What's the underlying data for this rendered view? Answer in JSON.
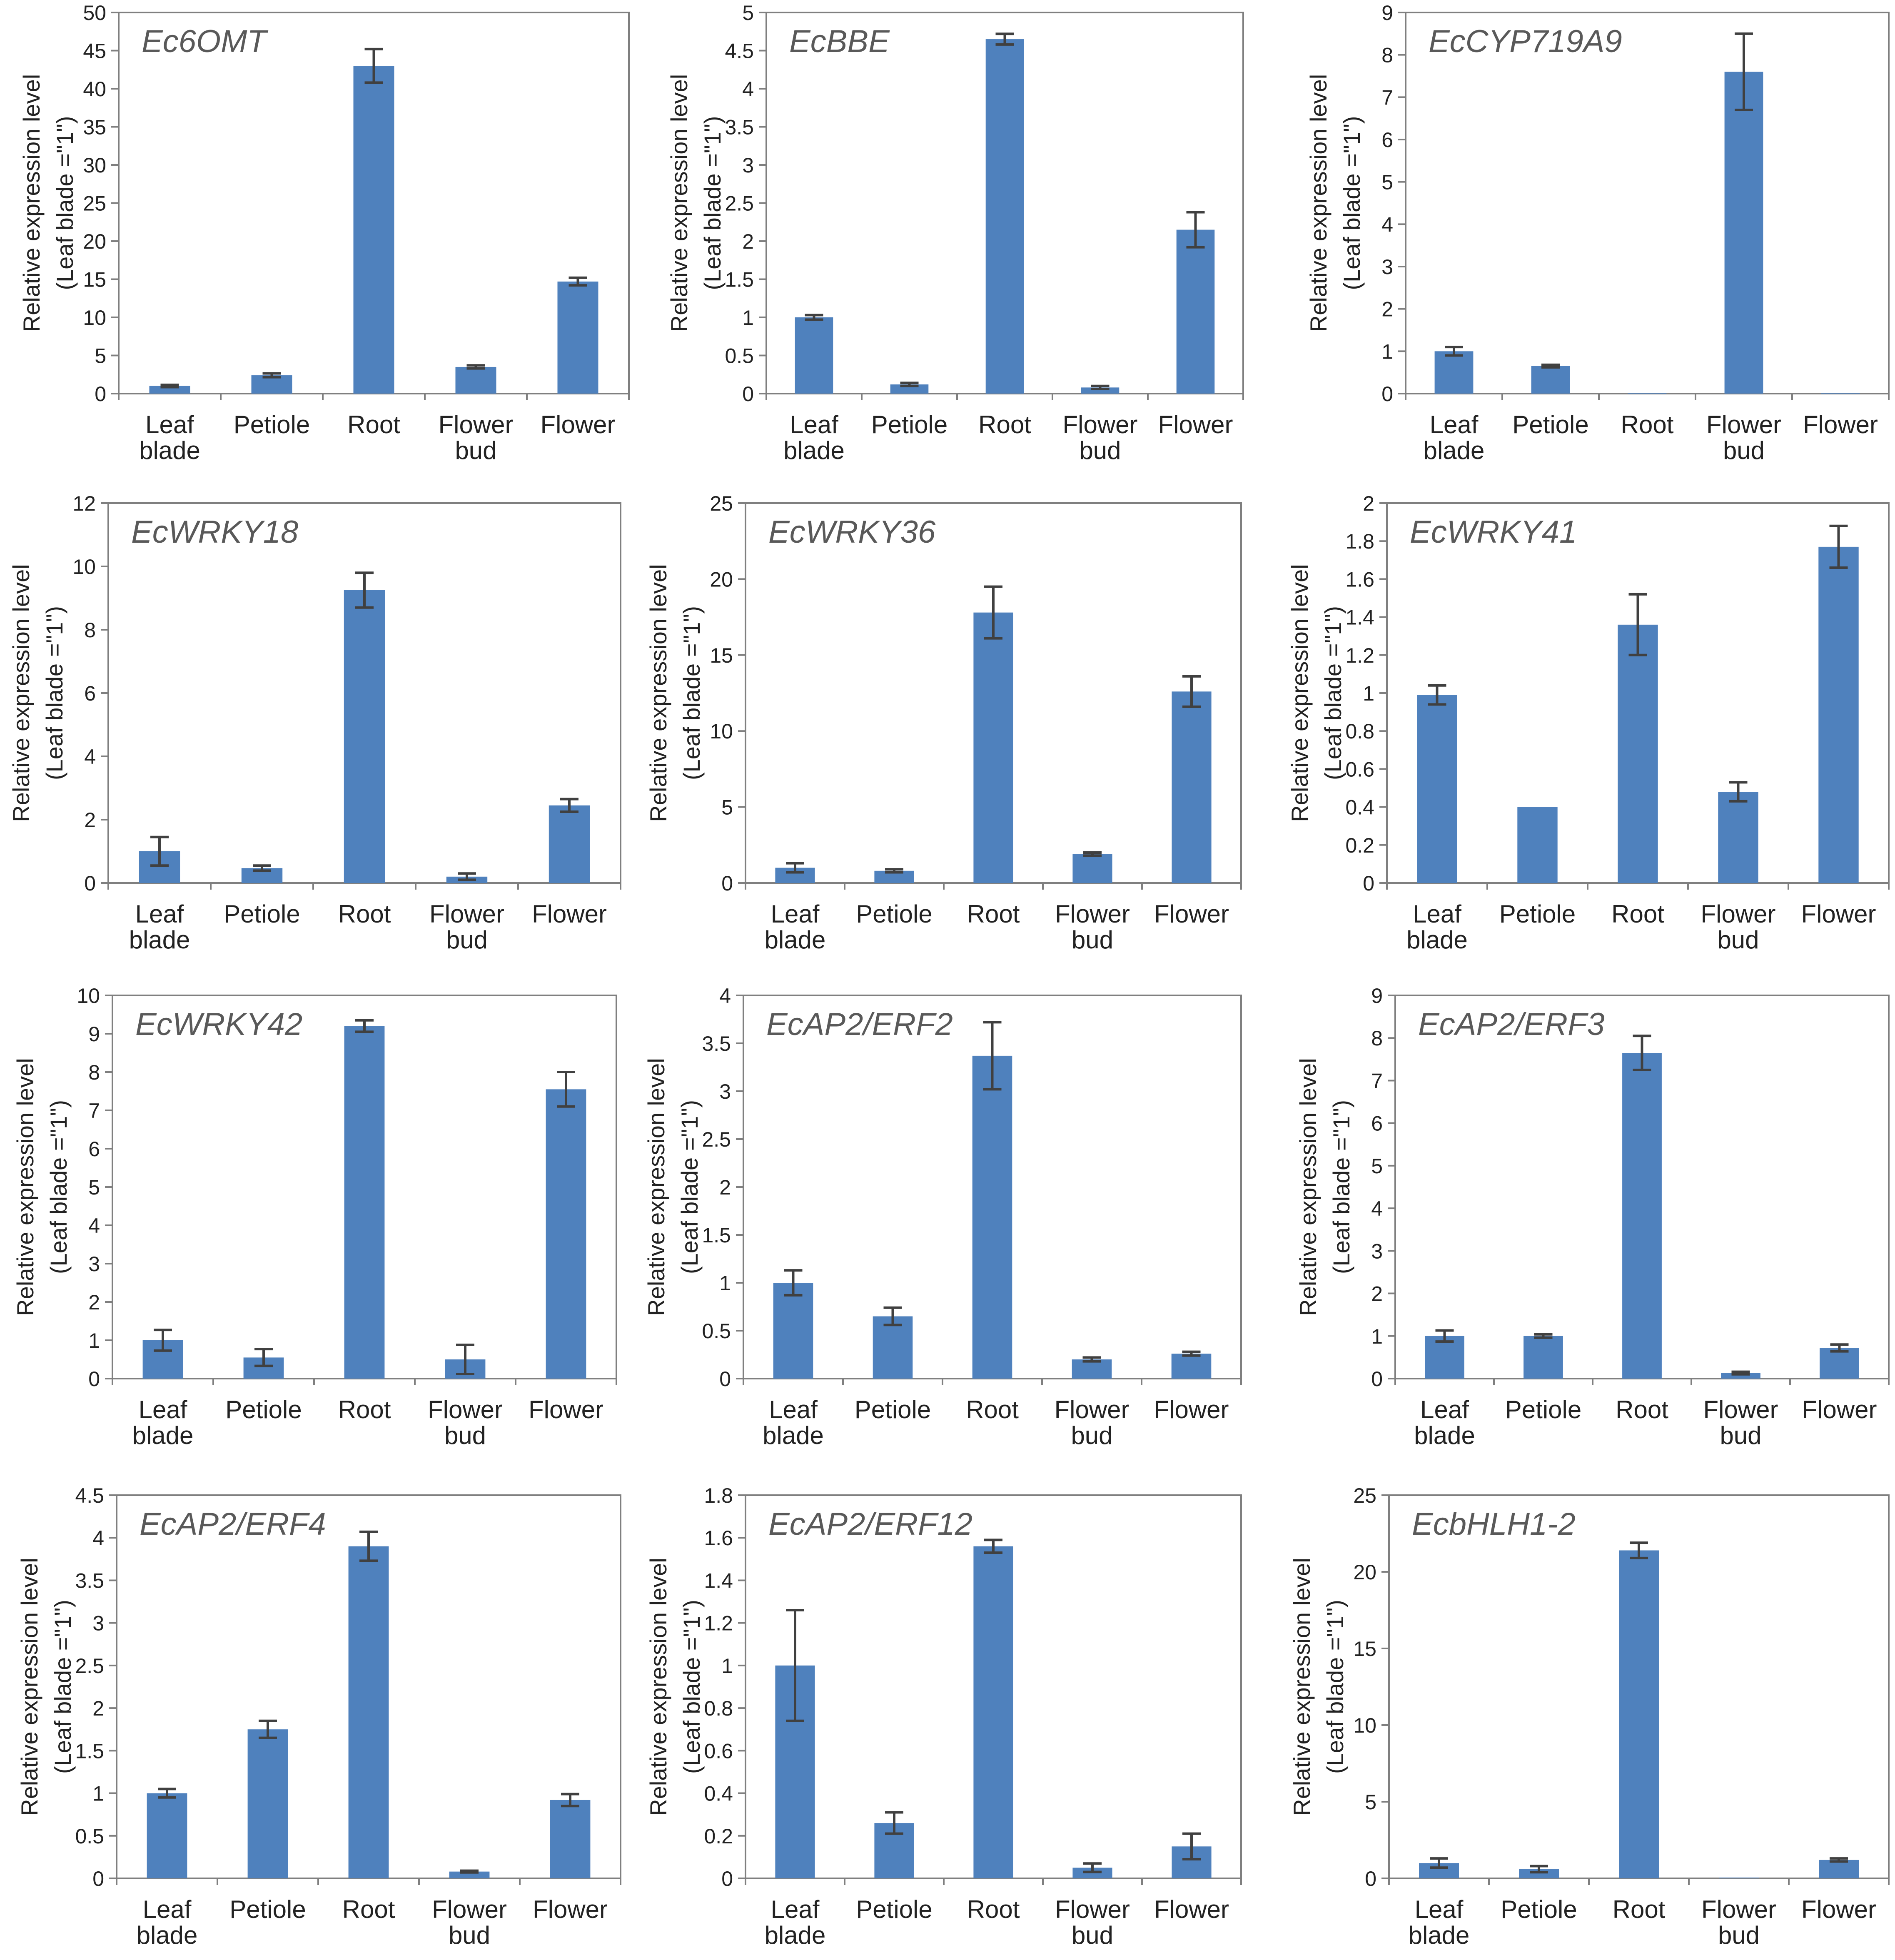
{
  "figure": {
    "categories": [
      [
        "Leaf",
        "blade"
      ],
      [
        "Petiole"
      ],
      [
        "Root"
      ],
      [
        "Flower",
        "bud"
      ],
      [
        "Flower"
      ]
    ],
    "ylabel_line1": "Relative expression level",
    "ylabel_line2": "(Leaf blade =\"1\")"
  },
  "chart_data": [
    {
      "type": "bar",
      "title": "Ec6OMT",
      "categories": [
        "Leaf blade",
        "Petiole",
        "Root",
        "Flower bud",
        "Flower"
      ],
      "values": [
        1.0,
        2.4,
        43.0,
        3.5,
        14.7
      ],
      "errors": [
        0.15,
        0.25,
        2.2,
        0.2,
        0.5
      ],
      "ylim": [
        0,
        50
      ],
      "ticks": [
        "0",
        "5",
        "10",
        "15",
        "20",
        "25",
        "30",
        "35",
        "40",
        "45",
        "50"
      ],
      "ylabel": "Relative expression level (Leaf blade =\"1\")"
    },
    {
      "type": "bar",
      "title": "EcBBE",
      "categories": [
        "Leaf blade",
        "Petiole",
        "Root",
        "Flower bud",
        "Flower"
      ],
      "values": [
        1.0,
        0.12,
        4.65,
        0.08,
        2.15
      ],
      "errors": [
        0.03,
        0.02,
        0.07,
        0.02,
        0.23
      ],
      "ylim": [
        0,
        5
      ],
      "ticks": [
        "0",
        "0.5",
        "1",
        "1.5",
        "2",
        "2.5",
        "3",
        "3.5",
        "4",
        "4.5",
        "5"
      ],
      "ylabel": "Relative expression level (Leaf blade =\"1\")"
    },
    {
      "type": "bar",
      "title": "EcCYP719A9",
      "categories": [
        "Leaf blade",
        "Petiole",
        "Root",
        "Flower bud",
        "Flower"
      ],
      "values": [
        1.0,
        0.65,
        0.01,
        7.6,
        0.01
      ],
      "errors": [
        0.1,
        0.03,
        0.0,
        0.9,
        0.0
      ],
      "ylim": [
        0,
        9
      ],
      "ticks": [
        "0",
        "1",
        "2",
        "3",
        "4",
        "5",
        "6",
        "7",
        "8",
        "9"
      ],
      "ylabel": "Relative expression level (Leaf blade =\"1\")"
    },
    {
      "type": "bar",
      "title": "EcWRKY18",
      "categories": [
        "Leaf blade",
        "Petiole",
        "Root",
        "Flower bud",
        "Flower"
      ],
      "values": [
        1.0,
        0.47,
        9.25,
        0.2,
        2.45
      ],
      "errors": [
        0.45,
        0.08,
        0.55,
        0.1,
        0.2
      ],
      "ylim": [
        0,
        12
      ],
      "ticks": [
        "0",
        "2",
        "4",
        "6",
        "8",
        "10",
        "12"
      ],
      "ylabel": "Relative expression level (Leaf blade =\"1\")"
    },
    {
      "type": "bar",
      "title": "EcWRKY36",
      "categories": [
        "Leaf blade",
        "Petiole",
        "Root",
        "Flower bud",
        "Flower"
      ],
      "values": [
        1.0,
        0.8,
        17.8,
        1.9,
        12.6
      ],
      "errors": [
        0.3,
        0.1,
        1.7,
        0.1,
        1.0
      ],
      "ylim": [
        0,
        25
      ],
      "ticks": [
        "0",
        "5",
        "10",
        "15",
        "20",
        "25"
      ],
      "ylabel": "Relative expression level (Leaf blade =\"1\")"
    },
    {
      "type": "bar",
      "title": "EcWRKY41",
      "categories": [
        "Leaf blade",
        "Petiole",
        "Root",
        "Flower bud",
        "Flower"
      ],
      "values": [
        0.99,
        0.4,
        1.36,
        0.48,
        1.77
      ],
      "errors": [
        0.05,
        0.0,
        0.16,
        0.05,
        0.11
      ],
      "ylim": [
        0,
        2
      ],
      "ticks": [
        "0",
        "0.2",
        "0.4",
        "0.6",
        "0.8",
        "1",
        "1.2",
        "1.4",
        "1.6",
        "1.8",
        "2"
      ],
      "ylabel": "Relative expression level (Leaf blade =\"1\")"
    },
    {
      "type": "bar",
      "title": "EcWRKY42",
      "categories": [
        "Leaf blade",
        "Petiole",
        "Root",
        "Flower bud",
        "Flower"
      ],
      "values": [
        1.0,
        0.55,
        9.2,
        0.5,
        7.55
      ],
      "errors": [
        0.27,
        0.22,
        0.15,
        0.38,
        0.45
      ],
      "ylim": [
        0,
        10
      ],
      "ticks": [
        "0",
        "1",
        "2",
        "3",
        "4",
        "5",
        "6",
        "7",
        "8",
        "9",
        "10"
      ],
      "ylabel": "Relative expression level (Leaf blade =\"1\")"
    },
    {
      "type": "bar",
      "title": "EcAP2/ERF2",
      "categories": [
        "Leaf blade",
        "Petiole",
        "Root",
        "Flower bud",
        "Flower"
      ],
      "values": [
        1.0,
        0.65,
        3.37,
        0.2,
        0.26
      ],
      "errors": [
        0.13,
        0.09,
        0.35,
        0.02,
        0.02
      ],
      "ylim": [
        0,
        4
      ],
      "ticks": [
        "0",
        "0.5",
        "1",
        "1.5",
        "2",
        "2.5",
        "3",
        "3.5",
        "4"
      ],
      "ylabel": "Relative expression level (Leaf blade =\"1\")"
    },
    {
      "type": "bar",
      "title": "EcAP2/ERF3",
      "categories": [
        "Leaf blade",
        "Petiole",
        "Root",
        "Flower bud",
        "Flower"
      ],
      "values": [
        1.0,
        1.0,
        7.65,
        0.13,
        0.72
      ],
      "errors": [
        0.13,
        0.04,
        0.4,
        0.03,
        0.08
      ],
      "ylim": [
        0,
        9
      ],
      "ticks": [
        "0",
        "1",
        "2",
        "3",
        "4",
        "5",
        "6",
        "7",
        "8",
        "9"
      ],
      "ylabel": "Relative expression level (Leaf blade =\"1\")"
    },
    {
      "type": "bar",
      "title": "EcAP2/ERF4",
      "categories": [
        "Leaf blade",
        "Petiole",
        "Root",
        "Flower bud",
        "Flower"
      ],
      "values": [
        1.0,
        1.75,
        3.9,
        0.08,
        0.92
      ],
      "errors": [
        0.05,
        0.1,
        0.17,
        0.01,
        0.07
      ],
      "ylim": [
        0,
        4.5
      ],
      "ticks": [
        "0",
        "0.5",
        "1",
        "1.5",
        "2",
        "2.5",
        "3",
        "3.5",
        "4",
        "4.5"
      ],
      "ylabel": "Relative expression level (Leaf blade =\"1\")"
    },
    {
      "type": "bar",
      "title": "EcAP2/ERF12",
      "categories": [
        "Leaf blade",
        "Petiole",
        "Root",
        "Flower bud",
        "Flower"
      ],
      "values": [
        1.0,
        0.26,
        1.56,
        0.05,
        0.15
      ],
      "errors": [
        0.26,
        0.05,
        0.03,
        0.02,
        0.06
      ],
      "ylim": [
        0,
        1.8
      ],
      "ticks": [
        "0",
        "0.2",
        "0.4",
        "0.6",
        "0.8",
        "1",
        "1.2",
        "1.4",
        "1.6",
        "1.8"
      ],
      "ylabel": "Relative expression level (Leaf blade =\"1\")"
    },
    {
      "type": "bar",
      "title": "EcbHLH1-2",
      "categories": [
        "Leaf blade",
        "Petiole",
        "Root",
        "Flower bud",
        "Flower"
      ],
      "values": [
        1.0,
        0.6,
        21.4,
        0.05,
        1.2
      ],
      "errors": [
        0.3,
        0.2,
        0.5,
        0.0,
        0.1
      ],
      "ylim": [
        0,
        25
      ],
      "ticks": [
        "0",
        "5",
        "10",
        "15",
        "20",
        "25"
      ],
      "ylabel": "Relative expression level (Leaf blade =\"1\")"
    }
  ]
}
